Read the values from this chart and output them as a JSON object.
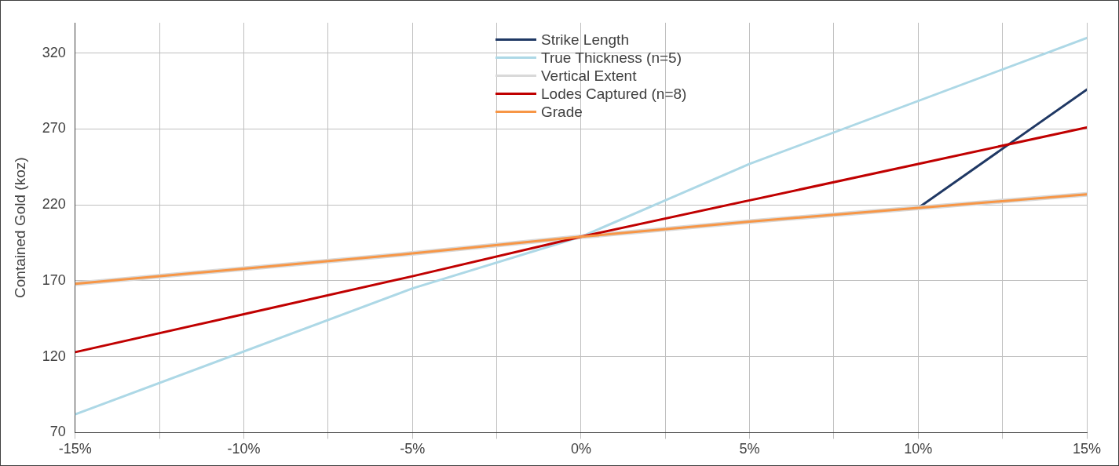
{
  "chart_data": {
    "type": "line",
    "ylabel": "Contained Gold (koz)",
    "xlim": [
      -15,
      15
    ],
    "ylim": [
      70,
      340
    ],
    "xticks": [
      {
        "value": -15,
        "label": "-15%"
      },
      {
        "value": -12.5,
        "label": null
      },
      {
        "value": -10,
        "label": "-10%"
      },
      {
        "value": -7.5,
        "label": null
      },
      {
        "value": -5,
        "label": "-5%"
      },
      {
        "value": -2.5,
        "label": null
      },
      {
        "value": 0,
        "label": "0%"
      },
      {
        "value": 2.5,
        "label": null
      },
      {
        "value": 5,
        "label": "5%"
      },
      {
        "value": 7.5,
        "label": null
      },
      {
        "value": 10,
        "label": "10%"
      },
      {
        "value": 12.5,
        "label": null
      },
      {
        "value": 15,
        "label": "15%"
      }
    ],
    "yticks": [
      70,
      120,
      170,
      220,
      270,
      320
    ],
    "grid": true,
    "legend": "top",
    "marker": "none",
    "line_style": "solid",
    "series": [
      {
        "name": "Strike Length",
        "color": "#1f3864",
        "x": [
          10,
          15
        ],
        "values": [
          218,
          296
        ]
      },
      {
        "name": "True Thickness (n=5)",
        "color": "#add8e6",
        "x": [
          -15,
          -5,
          0,
          5,
          15
        ],
        "values": [
          82,
          165,
          199,
          247,
          330
        ]
      },
      {
        "name": "Vertical Extent",
        "color": "#d9d9d9",
        "x": [
          -15,
          -10,
          -5,
          0,
          5,
          10,
          15
        ],
        "values": [
          168,
          178,
          188,
          199,
          209,
          218,
          227
        ]
      },
      {
        "name": "Lodes Captured (n=8)",
        "color": "#c00000",
        "x": [
          -15,
          -10,
          -5,
          0,
          5,
          10,
          15
        ],
        "values": [
          123,
          148,
          173,
          199,
          223,
          247,
          271
        ]
      },
      {
        "name": "Grade",
        "color": "#f79646",
        "x": [
          -15,
          -10,
          -5,
          0,
          5,
          10,
          15
        ],
        "values": [
          168,
          178,
          188,
          199,
          209,
          218,
          227
        ]
      }
    ]
  }
}
